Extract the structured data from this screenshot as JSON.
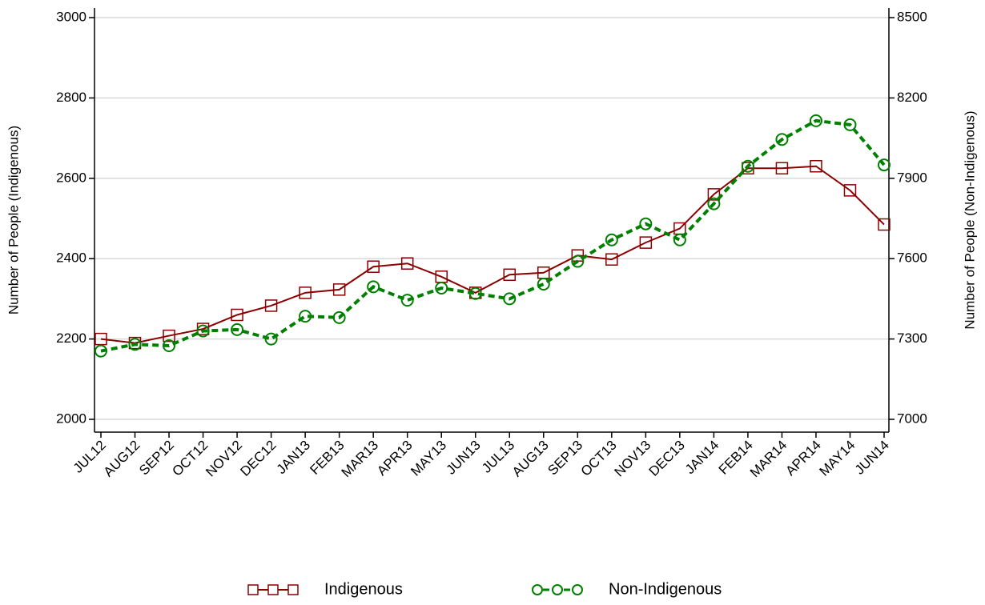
{
  "chart_data": {
    "type": "line",
    "y_label": "Number of People (Indigenous)",
    "y2_label": "Number of People (Non-Indigenous)",
    "categories": [
      "JUL12",
      "AUG12",
      "SEP12",
      "OCT12",
      "NOV12",
      "DEC12",
      "JAN13",
      "FEB13",
      "MAR13",
      "APR13",
      "MAY13",
      "JUN13",
      "JUL13",
      "AUG13",
      "SEP13",
      "OCT13",
      "NOV13",
      "DEC13",
      "JAN14",
      "FEB14",
      "MAR14",
      "APR14",
      "MAY14",
      "JUN14"
    ],
    "series": [
      {
        "name": "Indigenous",
        "color": "#8b0000",
        "marker": "square",
        "style": "solid",
        "values": [
          2200,
          2190,
          2208,
          2225,
          2260,
          2283,
          2315,
          2323,
          2380,
          2388,
          2355,
          2315,
          2360,
          2365,
          2408,
          2398,
          2440,
          2475,
          2560,
          2625,
          2625,
          2630,
          2570,
          2485
        ]
      },
      {
        "name": "Non-Indigenous",
        "color": "#008000",
        "marker": "circle",
        "style": "dashed",
        "axis": "y2",
        "values": [
          7255,
          7280,
          7275,
          7330,
          7335,
          7300,
          7385,
          7380,
          7495,
          7445,
          7490,
          7470,
          7450,
          7505,
          7590,
          7670,
          7730,
          7670,
          7805,
          7945,
          8045,
          8115,
          8100,
          7950
        ]
      }
    ],
    "ylim": [
      2000,
      3000
    ],
    "yticks": [
      2000,
      2200,
      2400,
      2600,
      2800,
      3000
    ],
    "y2lim": [
      7000,
      8500
    ],
    "y2ticks": [
      7000,
      7300,
      7600,
      7900,
      8200,
      8500
    ],
    "grid": true
  }
}
